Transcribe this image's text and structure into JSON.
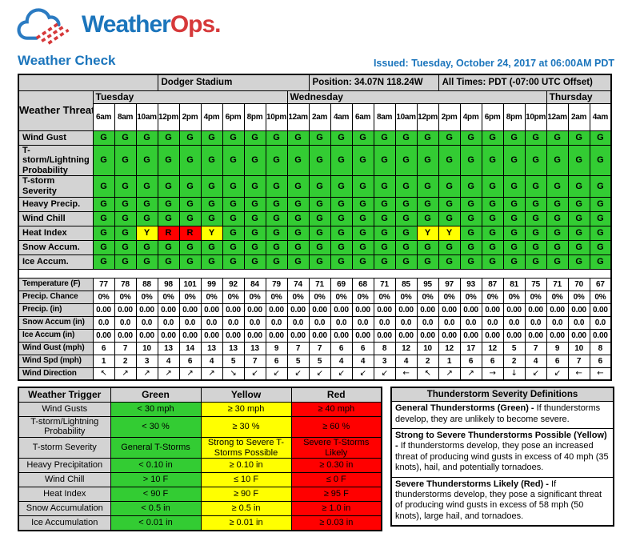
{
  "brand": {
    "part1": "Weather",
    "part2": "Ops."
  },
  "header": {
    "title": "Weather Check",
    "issued": "Issued: Tuesday, October 24, 2017 at 06:00AM PDT"
  },
  "location": {
    "name": "Dodger Stadium",
    "position": "Position: 34.07N 118.24W",
    "timezone": "All Times: PDT (-07:00 UTC Offset)"
  },
  "forecast": {
    "threats_header": "Weather Threats",
    "days": [
      {
        "label": "Tuesday",
        "span": 9
      },
      {
        "label": "Wednesday",
        "span": 12
      },
      {
        "label": "Thursday",
        "span": 3
      }
    ],
    "times": [
      "6am",
      "8am",
      "10am",
      "12pm",
      "2pm",
      "4pm",
      "6pm",
      "8pm",
      "10pm",
      "12am",
      "2am",
      "4am",
      "6am",
      "8am",
      "10am",
      "12pm",
      "2pm",
      "4pm",
      "6pm",
      "8pm",
      "10pm",
      "12am",
      "2am",
      "4am"
    ],
    "threat_rows": [
      {
        "label": "Wind Gust",
        "values": [
          "G",
          "G",
          "G",
          "G",
          "G",
          "G",
          "G",
          "G",
          "G",
          "G",
          "G",
          "G",
          "G",
          "G",
          "G",
          "G",
          "G",
          "G",
          "G",
          "G",
          "G",
          "G",
          "G",
          "G"
        ]
      },
      {
        "label": "T-storm/Lightning Probability",
        "values": [
          "G",
          "G",
          "G",
          "G",
          "G",
          "G",
          "G",
          "G",
          "G",
          "G",
          "G",
          "G",
          "G",
          "G",
          "G",
          "G",
          "G",
          "G",
          "G",
          "G",
          "G",
          "G",
          "G",
          "G"
        ]
      },
      {
        "label": "T-storm Severity",
        "values": [
          "G",
          "G",
          "G",
          "G",
          "G",
          "G",
          "G",
          "G",
          "G",
          "G",
          "G",
          "G",
          "G",
          "G",
          "G",
          "G",
          "G",
          "G",
          "G",
          "G",
          "G",
          "G",
          "G",
          "G"
        ]
      },
      {
        "label": "Heavy Precip.",
        "values": [
          "G",
          "G",
          "G",
          "G",
          "G",
          "G",
          "G",
          "G",
          "G",
          "G",
          "G",
          "G",
          "G",
          "G",
          "G",
          "G",
          "G",
          "G",
          "G",
          "G",
          "G",
          "G",
          "G",
          "G"
        ]
      },
      {
        "label": "Wind Chill",
        "values": [
          "G",
          "G",
          "G",
          "G",
          "G",
          "G",
          "G",
          "G",
          "G",
          "G",
          "G",
          "G",
          "G",
          "G",
          "G",
          "G",
          "G",
          "G",
          "G",
          "G",
          "G",
          "G",
          "G",
          "G"
        ]
      },
      {
        "label": "Heat Index",
        "values": [
          "G",
          "G",
          "Y",
          "R",
          "R",
          "Y",
          "G",
          "G",
          "G",
          "G",
          "G",
          "G",
          "G",
          "G",
          "G",
          "Y",
          "Y",
          "G",
          "G",
          "G",
          "G",
          "G",
          "G",
          "G"
        ]
      },
      {
        "label": "Snow Accum.",
        "values": [
          "G",
          "G",
          "G",
          "G",
          "G",
          "G",
          "G",
          "G",
          "G",
          "G",
          "G",
          "G",
          "G",
          "G",
          "G",
          "G",
          "G",
          "G",
          "G",
          "G",
          "G",
          "G",
          "G",
          "G"
        ]
      },
      {
        "label": "Ice Accum.",
        "values": [
          "G",
          "G",
          "G",
          "G",
          "G",
          "G",
          "G",
          "G",
          "G",
          "G",
          "G",
          "G",
          "G",
          "G",
          "G",
          "G",
          "G",
          "G",
          "G",
          "G",
          "G",
          "G",
          "G",
          "G"
        ]
      }
    ],
    "condition_rows": [
      {
        "label": "Temperature (F)",
        "values": [
          77,
          78,
          88,
          98,
          101,
          99,
          92,
          84,
          79,
          74,
          71,
          69,
          68,
          71,
          85,
          95,
          97,
          93,
          87,
          81,
          75,
          71,
          70,
          67
        ]
      },
      {
        "label": "Precip. Chance",
        "values": [
          "0%",
          "0%",
          "0%",
          "0%",
          "0%",
          "0%",
          "0%",
          "0%",
          "0%",
          "0%",
          "0%",
          "0%",
          "0%",
          "0%",
          "0%",
          "0%",
          "0%",
          "0%",
          "0%",
          "0%",
          "0%",
          "0%",
          "0%",
          "0%"
        ]
      },
      {
        "label": "Precip. (in)",
        "values": [
          "0.00",
          "0.00",
          "0.00",
          "0.00",
          "0.00",
          "0.00",
          "0.00",
          "0.00",
          "0.00",
          "0.00",
          "0.00",
          "0.00",
          "0.00",
          "0.00",
          "0.00",
          "0.00",
          "0.00",
          "0.00",
          "0.00",
          "0.00",
          "0.00",
          "0.00",
          "0.00",
          "0.00"
        ]
      },
      {
        "label": "Snow Accum (in)",
        "values": [
          "0.0",
          "0.0",
          "0.0",
          "0.0",
          "0.0",
          "0.0",
          "0.0",
          "0.0",
          "0.0",
          "0.0",
          "0.0",
          "0.0",
          "0.0",
          "0.0",
          "0.0",
          "0.0",
          "0.0",
          "0.0",
          "0.0",
          "0.0",
          "0.0",
          "0.0",
          "0.0",
          "0.0"
        ]
      },
      {
        "label": "Ice Accum (in)",
        "values": [
          "0.00",
          "0.00",
          "0.00",
          "0.00",
          "0.00",
          "0.00",
          "0.00",
          "0.00",
          "0.00",
          "0.00",
          "0.00",
          "0.00",
          "0.00",
          "0.00",
          "0.00",
          "0.00",
          "0.00",
          "0.00",
          "0.00",
          "0.00",
          "0.00",
          "0.00",
          "0.00",
          "0.00"
        ]
      },
      {
        "label": "Wind Gust (mph)",
        "values": [
          6,
          7,
          10,
          13,
          14,
          13,
          13,
          13,
          9,
          7,
          7,
          6,
          6,
          8,
          12,
          10,
          12,
          17,
          12,
          5,
          7,
          9,
          10,
          8
        ]
      },
      {
        "label": "Wind Spd (mph)",
        "values": [
          1,
          2,
          3,
          4,
          6,
          4,
          5,
          7,
          6,
          5,
          5,
          4,
          4,
          3,
          4,
          2,
          1,
          6,
          6,
          2,
          4,
          6,
          7,
          6
        ]
      },
      {
        "label": "Wind Direction",
        "values": [
          "↖",
          "↗",
          "↗",
          "↗",
          "↗",
          "↗",
          "↘",
          "↙",
          "↙",
          "↙",
          "↙",
          "↙",
          "↙",
          "↙",
          "←",
          "↖",
          "↗",
          "↗",
          "→",
          "↓",
          "↙",
          "↙",
          "←",
          "←"
        ]
      }
    ]
  },
  "triggers": {
    "headers": [
      "Weather Trigger",
      "Green",
      "Yellow",
      "Red"
    ],
    "rows": [
      {
        "label": "Wind Gusts",
        "green": "< 30 mph",
        "yellow": "≥ 30 mph",
        "red": "≥ 40 mph"
      },
      {
        "label": "T-storm/Lightning Probability",
        "green": "< 30 %",
        "yellow": "≥ 30 %",
        "red": "≥ 60 %"
      },
      {
        "label": "T-storm Severity",
        "green": "General T-Storms",
        "yellow": "Strong to Severe T-Storms Possible",
        "red": "Severe T-Storms Likely"
      },
      {
        "label": "Heavy Precipitation",
        "green": "< 0.10 in",
        "yellow": "≥ 0.10 in",
        "red": "≥ 0.30 in"
      },
      {
        "label": "Wind Chill",
        "green": "> 10 F",
        "yellow": "≤ 10 F",
        "red": "≤ 0 F"
      },
      {
        "label": "Heat Index",
        "green": "< 90 F",
        "yellow": "≥ 90 F",
        "red": "≥ 95 F"
      },
      {
        "label": "Snow Accumulation",
        "green": "< 0.5 in",
        "yellow": "≥ 0.5 in",
        "red": "≥ 1.0 in"
      },
      {
        "label": "Ice Accumulation",
        "green": "< 0.01 in",
        "yellow": "≥ 0.01 in",
        "red": "≥ 0.03 in"
      }
    ]
  },
  "definitions": {
    "title": "Thunderstorm Severity Definitions",
    "items": [
      {
        "lead": "General Thunderstorms (Green) -",
        "text": "If thunderstorms develop, they are unlikely to become severe."
      },
      {
        "lead": "Strong to Severe Thunderstorms Possible (Yellow) -",
        "text": "If thunderstorms develop, they pose an increased threat of producing wind gusts in excess of 40 mph (35 knots), hail, and potentially tornadoes."
      },
      {
        "lead": "Severe Thunderstorms Likely (Red) -",
        "text": "If thunderstorms develop, they pose a significant threat of producing wind gusts in excess of 58 mph (50 knots), large hail, and tornadoes."
      }
    ]
  },
  "colors": {
    "green": "#33CC33",
    "yellow": "#FFFF00",
    "red": "#FF0000",
    "header_gray": "#D3D3D3",
    "brand_blue": "#1B75BC",
    "brand_red": "#D6393A"
  }
}
